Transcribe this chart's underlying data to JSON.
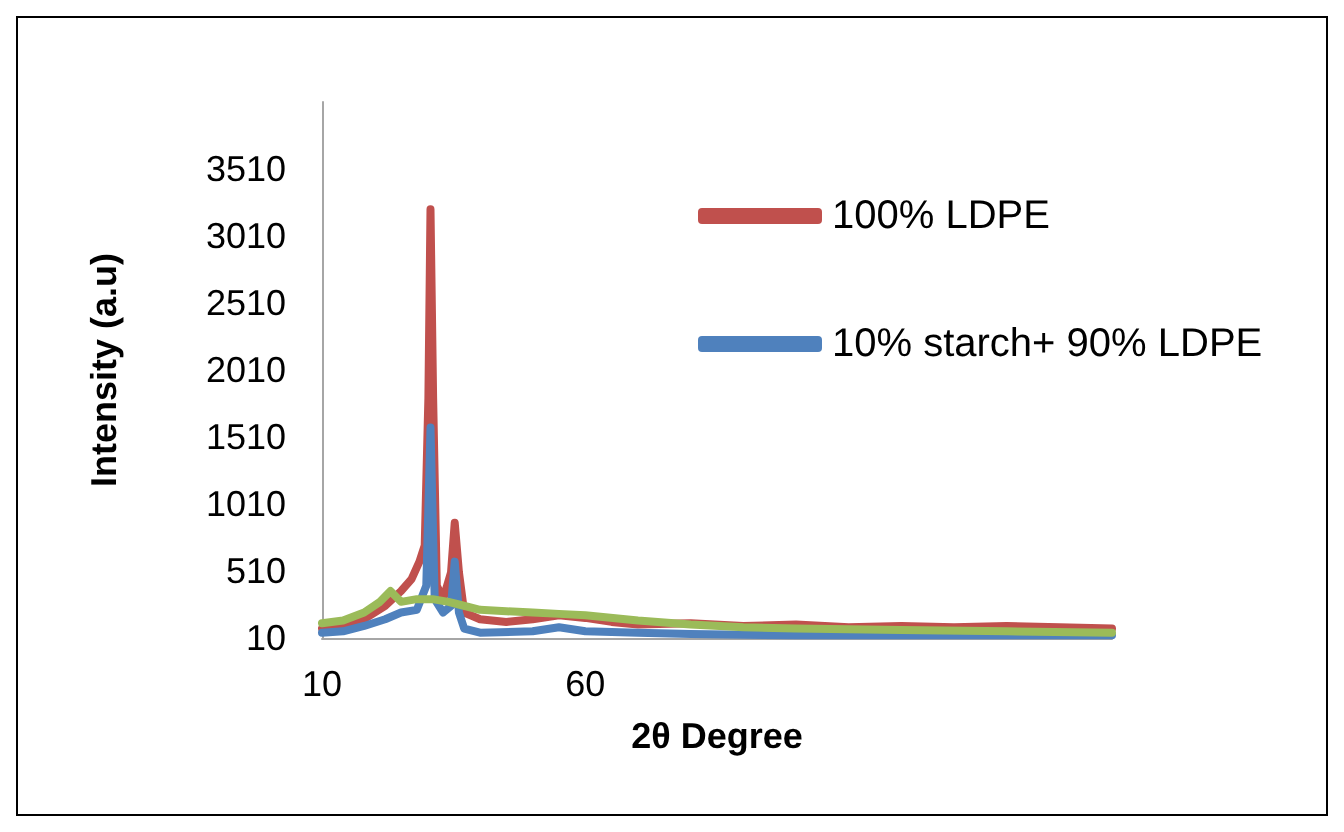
{
  "chart_data": {
    "type": "line",
    "xlabel": "2θ Degree",
    "ylabel": "Intensity (a.u)",
    "xlim": [
      10,
      160
    ],
    "xticks": [
      10,
      60
    ],
    "ylim": [
      10,
      4010
    ],
    "yticks": [
      10,
      510,
      1010,
      1510,
      2010,
      2510,
      3010,
      3510
    ],
    "grid": false,
    "legend": "top right",
    "marker": "none",
    "line_style": "solid",
    "series": [
      {
        "name": "100% LDPE",
        "color": "#c0504d",
        "x": [
          10,
          14,
          18,
          22,
          25,
          27,
          28.5,
          29.5,
          30.2,
          30.6,
          31.1,
          31.8,
          33,
          34.5,
          35.2,
          36,
          37,
          40,
          45,
          50,
          55,
          60,
          65,
          70,
          80,
          90,
          100,
          110,
          120,
          130,
          140,
          150,
          160
        ],
        "values": [
          80,
          100,
          150,
          250,
          360,
          450,
          580,
          700,
          1800,
          3210,
          1800,
          400,
          300,
          500,
          870,
          500,
          200,
          150,
          130,
          150,
          180,
          160,
          130,
          110,
          120,
          100,
          110,
          90,
          100,
          90,
          100,
          90,
          80
        ]
      },
      {
        "name": "10% starch+ 90% LDPE",
        "color": "#4f81bd",
        "x": [
          10,
          14,
          18,
          22,
          25,
          28,
          29.8,
          30.6,
          31.4,
          33,
          34.5,
          35.2,
          36,
          37,
          40,
          50,
          55,
          60,
          70,
          80,
          100,
          120,
          140,
          160
        ],
        "values": [
          50,
          60,
          100,
          150,
          200,
          220,
          400,
          1580,
          300,
          200,
          250,
          580,
          200,
          80,
          50,
          60,
          90,
          60,
          50,
          40,
          30,
          30,
          30,
          30
        ]
      },
      {
        "color": "#9bbb59",
        "x": [
          10,
          14,
          18,
          21,
          23,
          25,
          28,
          31,
          34,
          36,
          40,
          45,
          50,
          55,
          60,
          70,
          80,
          90,
          100,
          120,
          140,
          160
        ],
        "values": [
          120,
          140,
          200,
          280,
          360,
          280,
          300,
          300,
          280,
          260,
          220,
          210,
          200,
          190,
          180,
          140,
          110,
          90,
          80,
          70,
          60,
          50
        ]
      }
    ]
  }
}
